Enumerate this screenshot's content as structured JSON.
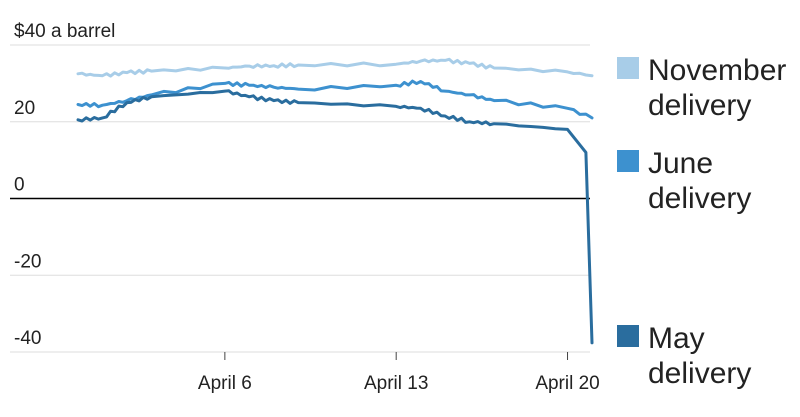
{
  "chart_data": {
    "type": "line",
    "y_unit_label": "$40 a barrel",
    "ylim": [
      -40,
      40
    ],
    "y_ticks": [
      {
        "value": 40,
        "label": "$40 a barrel"
      },
      {
        "value": 20,
        "label": "20"
      },
      {
        "value": 0,
        "label": "0"
      },
      {
        "value": -20,
        "label": "-20"
      },
      {
        "value": -40,
        "label": "-40"
      }
    ],
    "xlim": [
      "2020-03-31",
      "2020-04-21"
    ],
    "x_ticks": [
      {
        "date": "2020-04-06",
        "label": "April 6"
      },
      {
        "date": "2020-04-13",
        "label": "April 13"
      },
      {
        "date": "2020-04-20",
        "label": "April 20"
      }
    ],
    "grid": "horizontal",
    "zero_line": true,
    "legend_position": "right",
    "series": [
      {
        "name": [
          "November",
          "delivery"
        ],
        "color": "#a8cde8",
        "points": [
          [
            "2020-03-31",
            32.5
          ],
          [
            "2020-04-01",
            32.0
          ],
          [
            "2020-04-02",
            32.8
          ],
          [
            "2020-04-03",
            33.2
          ],
          [
            "2020-04-06",
            34.0
          ],
          [
            "2020-04-07",
            34.5
          ],
          [
            "2020-04-08",
            34.6
          ],
          [
            "2020-04-09",
            34.8
          ],
          [
            "2020-04-13",
            35.0
          ],
          [
            "2020-04-14",
            35.8
          ],
          [
            "2020-04-15",
            36.0
          ],
          [
            "2020-04-16",
            35.2
          ],
          [
            "2020-04-17",
            34.0
          ],
          [
            "2020-04-20",
            33.0
          ],
          [
            "2020-04-21",
            32.0
          ]
        ]
      },
      {
        "name": [
          "June",
          "delivery"
        ],
        "color": "#3d91cf",
        "points": [
          [
            "2020-03-31",
            24.5
          ],
          [
            "2020-04-01",
            24.3
          ],
          [
            "2020-04-02",
            25.5
          ],
          [
            "2020-04-03",
            27.0
          ],
          [
            "2020-04-06",
            30.0
          ],
          [
            "2020-04-07",
            29.5
          ],
          [
            "2020-04-08",
            29.0
          ],
          [
            "2020-04-09",
            28.5
          ],
          [
            "2020-04-13",
            29.5
          ],
          [
            "2020-04-14",
            30.5
          ],
          [
            "2020-04-15",
            28.0
          ],
          [
            "2020-04-16",
            27.0
          ],
          [
            "2020-04-17",
            25.5
          ],
          [
            "2020-04-20",
            23.5
          ],
          [
            "2020-04-21",
            21.0
          ]
        ]
      },
      {
        "name": [
          "May",
          "delivery"
        ],
        "color": "#2a6d9e",
        "points": [
          [
            "2020-03-31",
            20.5
          ],
          [
            "2020-04-01",
            21.0
          ],
          [
            "2020-04-02",
            25.0
          ],
          [
            "2020-04-03",
            26.5
          ],
          [
            "2020-04-06",
            28.0
          ],
          [
            "2020-04-07",
            26.5
          ],
          [
            "2020-04-08",
            25.5
          ],
          [
            "2020-04-09",
            25.0
          ],
          [
            "2020-04-13",
            24.0
          ],
          [
            "2020-04-14",
            23.5
          ],
          [
            "2020-04-15",
            21.5
          ],
          [
            "2020-04-16",
            20.0
          ],
          [
            "2020-04-17",
            19.5
          ],
          [
            "2020-04-20",
            18.0
          ],
          [
            "2020-04-21",
            -37.6
          ]
        ]
      }
    ]
  }
}
